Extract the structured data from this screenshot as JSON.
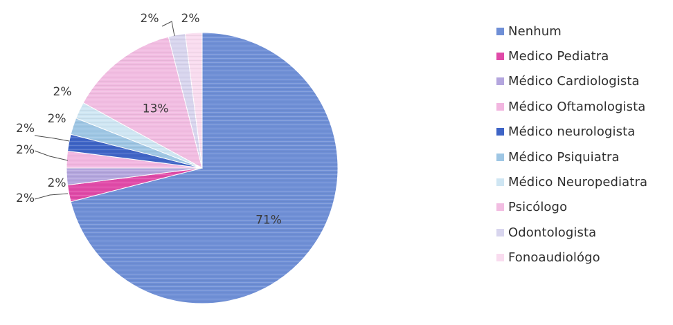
{
  "chart_data": {
    "type": "pie",
    "title": "",
    "slices": [
      {
        "name": "Nenhum",
        "value": 71,
        "label": "71%",
        "color": "#6f8fd6"
      },
      {
        "name": "Medico Pediatra",
        "value": 2,
        "label": "2%",
        "color": "#e04aa8"
      },
      {
        "name": "Médico Cardiologista",
        "value": 2,
        "label": "2%",
        "color": "#b4a6de"
      },
      {
        "name": "Médico Oftamologista",
        "value": 2,
        "label": "2%",
        "color": "#f2b6e0"
      },
      {
        "name": "Médico neurologista",
        "value": 2,
        "label": "2%",
        "color": "#3e64c6"
      },
      {
        "name": "Médico Psiquiatra",
        "value": 2,
        "label": "2%",
        "color": "#9ec6e4"
      },
      {
        "name": "Médico Neuropediatra",
        "value": 2,
        "label": "2%",
        "color": "#cfe6f3"
      },
      {
        "name": "Psicólogo",
        "value": 13,
        "label": "13%",
        "color": "#f2bde2"
      },
      {
        "name": "Odontologista",
        "value": 2,
        "label": "2%",
        "color": "#d8d5ee"
      },
      {
        "name": "Fonoaudiológo",
        "value": 2,
        "label": "2%",
        "color": "#f9dcef"
      }
    ],
    "legend_position": "right"
  }
}
